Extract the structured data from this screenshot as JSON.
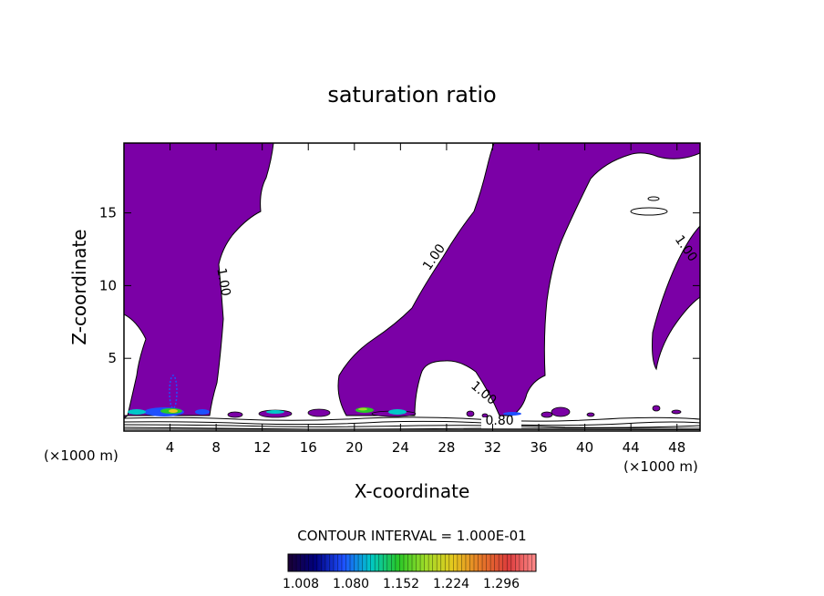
{
  "chart_data": {
    "type": "contour",
    "title": "saturation ratio",
    "xlabel": "X-coordinate",
    "ylabel": "Z-coordinate",
    "x_unit": "(×1000 m)",
    "y_unit": "(×1000 m)",
    "xlim": [
      0,
      50
    ],
    "ylim": [
      0,
      19.8
    ],
    "x_ticks": [
      4,
      8,
      12,
      16,
      20,
      24,
      28,
      32,
      36,
      40,
      44,
      48
    ],
    "y_ticks": [
      5,
      10,
      15
    ],
    "contour_labels": [
      {
        "text": "1.00",
        "x": 8.3,
        "z": 10.2,
        "angle": 80
      },
      {
        "text": "1.00",
        "x": 27.2,
        "z": 11.8,
        "angle": -55
      },
      {
        "text": "1.00",
        "x": 48.5,
        "z": 12.4,
        "angle": 55
      },
      {
        "text": "1.00",
        "x": 31.0,
        "z": 2.4,
        "angle": 40
      },
      {
        "text": "0.80",
        "x": 32.6,
        "z": 0.45,
        "angle": 0
      }
    ],
    "contour_interval_text": "CONTOUR INTERVAL = 1.000E-01",
    "colorbar": {
      "ticks": [
        "1.008",
        "1.080",
        "1.152",
        "1.224",
        "1.296"
      ],
      "colors": [
        "#1a0033",
        "#000080",
        "#1e50ff",
        "#00c8c8",
        "#28c828",
        "#a0dc28",
        "#e6c81e",
        "#e67828",
        "#dc3c3c",
        "#ff8c8c"
      ]
    },
    "fill_color": "#7b00a6"
  }
}
